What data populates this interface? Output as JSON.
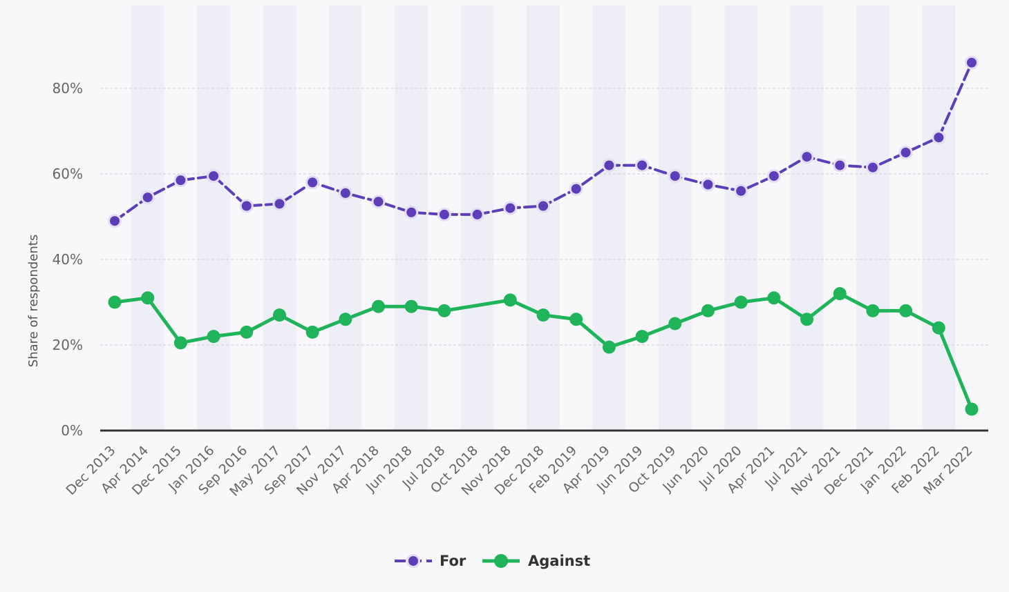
{
  "chart_data": {
    "type": "line",
    "title": "",
    "xlabel": "",
    "ylabel": "Share of respondents",
    "ylim": [
      0,
      90
    ],
    "y_ticks": [
      0,
      20,
      40,
      60,
      80
    ],
    "y_tick_labels": [
      "0%",
      "20%",
      "40%",
      "60%",
      "80%"
    ],
    "grid": true,
    "legend_position": "bottom-center",
    "categories": [
      "Dec 2013",
      "Apr 2014",
      "Dec 2015",
      "Jan 2016",
      "Sep 2016",
      "May 2017",
      "Sep 2017",
      "Nov 2017",
      "Apr 2018",
      "Jun 2018",
      "Jul 2018",
      "Oct 2018",
      "Nov 2018",
      "Dec 2018",
      "Feb 2019",
      "Apr 2019",
      "Jun 2019",
      "Oct 2019",
      "Jun 2020",
      "Jul 2020",
      "Apr 2021",
      "Jul 2021",
      "Nov 2021",
      "Dec 2021",
      "Jan 2022",
      "Feb 2022",
      "Mar 2022"
    ],
    "series": [
      {
        "name": "For",
        "color": "#5c3fb8",
        "values": [
          49,
          54.5,
          58.5,
          59.5,
          52.5,
          53,
          58,
          55.5,
          53.5,
          51,
          50.5,
          50.5,
          52,
          52.5,
          56.5,
          62,
          62,
          59.5,
          57.5,
          56,
          59.5,
          64,
          62,
          61.5,
          65,
          68.5,
          86
        ]
      },
      {
        "name": "Against",
        "color": "#1fb35a",
        "values": [
          30,
          31,
          20.5,
          22,
          23,
          27,
          23,
          26,
          29,
          29,
          28,
          null,
          30.5,
          27,
          26,
          19.5,
          22,
          25,
          28,
          30,
          31,
          26,
          32,
          28,
          28,
          24,
          5
        ]
      }
    ]
  }
}
